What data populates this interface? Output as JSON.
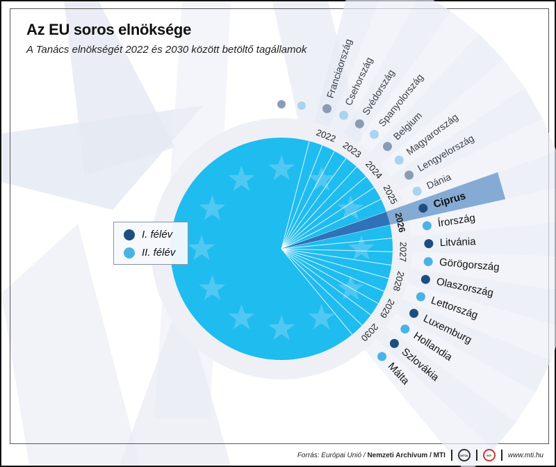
{
  "header": {
    "title": "Az EU soros elnöksége",
    "subtitle": "A Tanács elnökségét 2022 és 2030 között betöltő tagállamok"
  },
  "legend": {
    "items": [
      {
        "label": "I. félév",
        "color": "#1c4f80"
      },
      {
        "label": "II. félév",
        "color": "#4ab3e6"
      }
    ]
  },
  "colors": {
    "disc": "#1fbcef",
    "ring": "#eef0f6",
    "highlight": "#2f72b8",
    "past_first_half": "#8a9bb5",
    "past_second_half": "#a8d4ee",
    "future_first_half": "#1c4f80",
    "future_second_half": "#4ab3e6"
  },
  "chart_data": {
    "type": "table",
    "title": "Az EU soros elnöksége",
    "subtitle": "A Tanács elnökségét 2022 és 2030 között betöltő tagállamok",
    "columns": [
      "year",
      "half",
      "country"
    ],
    "rows": [
      [
        2022,
        "I. félév",
        "Franciaország"
      ],
      [
        2022,
        "II. félév",
        "Csehország"
      ],
      [
        2023,
        "I. félév",
        "Svédország"
      ],
      [
        2023,
        "II. félév",
        "Spanyolország"
      ],
      [
        2024,
        "I. félév",
        "Belgium"
      ],
      [
        2024,
        "II. félév",
        "Magyarország"
      ],
      [
        2025,
        "I. félév",
        "Lengyelország"
      ],
      [
        2025,
        "II. félév",
        "Dánia"
      ],
      [
        2026,
        "I. félév",
        "Ciprus"
      ],
      [
        2026,
        "II. félév",
        "Írország"
      ],
      [
        2027,
        "I. félév",
        "Litvánia"
      ],
      [
        2027,
        "II. félév",
        "Görögország"
      ],
      [
        2028,
        "I. félév",
        "Olaszország"
      ],
      [
        2028,
        "II. félév",
        "Lettország"
      ],
      [
        2029,
        "I. félév",
        "Luxemburg"
      ],
      [
        2029,
        "II. félév",
        "Hollandia"
      ],
      [
        2030,
        "I. félév",
        "Szlovákia"
      ],
      [
        2030,
        "II. félév",
        "Málta"
      ]
    ],
    "highlight": {
      "year": 2026,
      "half": "I. félév",
      "country": "Ciprus"
    }
  },
  "wheel": {
    "years": [
      "2022",
      "2023",
      "2024",
      "2025",
      "2026",
      "2027",
      "2028",
      "2029",
      "2030"
    ],
    "countries": [
      "Franciaország",
      "Csehország",
      "Svédország",
      "Spanyolország",
      "Belgium",
      "Magyarország",
      "Lengyelország",
      "Dánia",
      "Ciprus",
      "Írország",
      "Litvánia",
      "Görögország",
      "Olaszország",
      "Lettország",
      "Luxemburg",
      "Hollandia",
      "Szlovákia",
      "Málta"
    ]
  },
  "footer": {
    "source_prefix": "Forrás: Európai Unió /",
    "source_bold": "Nemzeti Archívum / MTI",
    "logo1": "MTVA",
    "logo2": "MTI",
    "url": "www.mti.hu"
  }
}
